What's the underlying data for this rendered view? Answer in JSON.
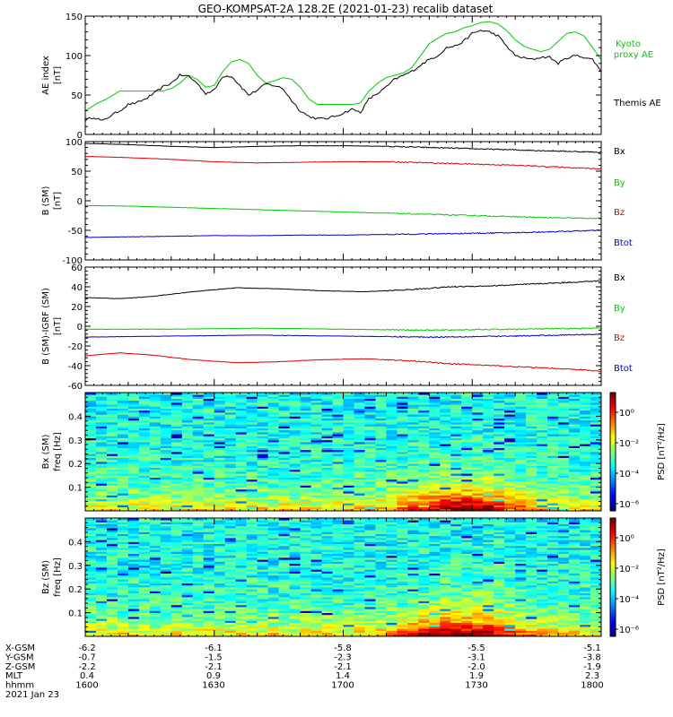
{
  "title": "GEO-KOMPSAT-2A 128.2E (2021-01-23) recalib dataset",
  "colors": {
    "black": "#000000",
    "red": "#e00000",
    "green": "#00cc00",
    "blue": "#0000cc"
  },
  "chart_data": [
    {
      "type": "line",
      "name": "ae",
      "ylabel": "AE index",
      "yunit": "[nT]",
      "ylim": [
        0,
        150
      ],
      "yticks": [
        0,
        50,
        100,
        150
      ],
      "series": [
        {
          "name": "Kyoto proxy AE",
          "color": "#00cc00",
          "x": [
            0,
            3,
            5,
            8,
            12,
            15,
            18,
            20,
            22,
            24,
            26,
            28,
            30,
            32,
            34,
            36,
            38,
            40,
            42,
            44,
            46,
            48,
            50,
            52,
            54,
            56,
            58,
            60,
            62,
            64,
            66,
            68,
            70,
            72,
            74,
            76,
            78,
            80,
            82,
            84,
            86,
            88,
            90,
            92,
            94,
            96,
            98,
            100,
            102,
            104,
            106,
            108,
            110,
            112,
            114,
            116,
            118,
            120
          ],
          "y": [
            30,
            40,
            45,
            55,
            55,
            55,
            55,
            58,
            65,
            75,
            70,
            60,
            62,
            80,
            92,
            95,
            90,
            75,
            65,
            68,
            72,
            70,
            60,
            45,
            38,
            38,
            38,
            38,
            38,
            40,
            55,
            65,
            72,
            75,
            78,
            85,
            100,
            115,
            122,
            128,
            130,
            135,
            138,
            142,
            143,
            140,
            132,
            120,
            112,
            108,
            105,
            108,
            118,
            128,
            130,
            125,
            110,
            95
          ]
        },
        {
          "name": "Themis AE",
          "color": "#000000",
          "x": [
            0,
            2,
            4,
            6,
            8,
            10,
            12,
            14,
            16,
            18,
            20,
            22,
            24,
            26,
            28,
            30,
            32,
            34,
            36,
            38,
            40,
            42,
            44,
            46,
            48,
            50,
            52,
            54,
            56,
            58,
            60,
            62,
            64,
            66,
            68,
            70,
            72,
            74,
            76,
            78,
            80,
            82,
            84,
            86,
            88,
            90,
            92,
            94,
            96,
            98,
            100,
            102,
            104,
            106,
            108,
            110,
            112,
            114,
            116,
            118,
            120
          ],
          "y": [
            18,
            22,
            17,
            24,
            30,
            38,
            40,
            45,
            52,
            60,
            65,
            75,
            74,
            65,
            52,
            56,
            74,
            74,
            62,
            50,
            56,
            64,
            62,
            58,
            43,
            30,
            23,
            20,
            20,
            23,
            27,
            32,
            28,
            45,
            52,
            60,
            70,
            75,
            80,
            88,
            95,
            100,
            110,
            112,
            118,
            128,
            132,
            130,
            125,
            112,
            100,
            97,
            95,
            98,
            98,
            90,
            97,
            100,
            98,
            95,
            80
          ]
        }
      ]
    },
    {
      "type": "line",
      "name": "bsm",
      "ylabel": "B (SM)",
      "yunit": "[nT]",
      "ylim": [
        -100,
        100
      ],
      "yticks": [
        -100,
        -50,
        0,
        50,
        100
      ],
      "series": [
        {
          "name": "Bx",
          "color": "#000000",
          "x": [
            0,
            10,
            20,
            30,
            40,
            50,
            60,
            70,
            80,
            90,
            100,
            110,
            120
          ],
          "y": [
            97,
            95,
            92,
            90,
            92,
            93,
            93,
            92,
            90,
            88,
            86,
            84,
            82
          ]
        },
        {
          "name": "By",
          "color": "#00cc00",
          "x": [
            0,
            10,
            20,
            30,
            40,
            50,
            60,
            70,
            80,
            90,
            100,
            110,
            120
          ],
          "y": [
            -8,
            -9,
            -11,
            -13,
            -15,
            -17,
            -19,
            -21,
            -23,
            -25,
            -27,
            -29,
            -30
          ]
        },
        {
          "name": "Bz",
          "color": "#e00000",
          "x": [
            0,
            10,
            20,
            30,
            40,
            50,
            60,
            70,
            80,
            90,
            100,
            110,
            120
          ],
          "y": [
            75,
            73,
            70,
            66,
            64,
            65,
            66,
            66,
            64,
            62,
            60,
            57,
            54
          ]
        },
        {
          "name": "Btot",
          "color": "#0000cc",
          "x": [
            0,
            10,
            20,
            30,
            40,
            50,
            60,
            70,
            80,
            90,
            100,
            110,
            120
          ],
          "y": [
            -62,
            -61,
            -60,
            -59,
            -59,
            -58,
            -58,
            -57,
            -56,
            -55,
            -54,
            -52,
            -50
          ]
        }
      ]
    },
    {
      "type": "line",
      "name": "bigrf",
      "ylabel": "B (SM)-IGRF (SM)",
      "yunit": "[nT]",
      "ylim": [
        -60,
        60
      ],
      "yticks": [
        -60,
        -40,
        -20,
        0,
        20,
        40,
        60
      ],
      "series": [
        {
          "name": "Bx",
          "color": "#000000",
          "x": [
            0,
            8,
            15,
            25,
            35,
            45,
            55,
            65,
            75,
            85,
            95,
            105,
            115,
            120
          ],
          "y": [
            29,
            28,
            30,
            35,
            39,
            38,
            36,
            35,
            37,
            40,
            41,
            43,
            45,
            46
          ]
        },
        {
          "name": "By",
          "color": "#00cc00",
          "x": [
            0,
            20,
            40,
            60,
            80,
            100,
            120
          ],
          "y": [
            -3,
            -3,
            -2,
            -3,
            -4,
            -3,
            -2
          ]
        },
        {
          "name": "Bz",
          "color": "#e00000",
          "x": [
            0,
            8,
            15,
            25,
            35,
            45,
            55,
            65,
            75,
            85,
            95,
            105,
            115,
            120
          ],
          "y": [
            -30,
            -27,
            -29,
            -34,
            -37,
            -36,
            -34,
            -33,
            -35,
            -38,
            -40,
            -42,
            -44,
            -46
          ]
        },
        {
          "name": "Btot",
          "color": "#0000cc",
          "x": [
            0,
            20,
            40,
            60,
            80,
            100,
            120
          ],
          "y": [
            -11,
            -10,
            -9,
            -10,
            -11,
            -10,
            -8
          ]
        }
      ]
    },
    {
      "type": "heatmap",
      "name": "bx-spec",
      "ylabel": "Bx (SM)",
      "yunit": "freq [Hz]",
      "ylim": [
        0,
        0.5
      ],
      "yticks": [
        0.1,
        0.2,
        0.3,
        0.4
      ],
      "colorbar_label": "PSD [nT²/Hz]",
      "colorbar_ticks": [
        "10⁰",
        "10⁻²",
        "10⁻⁴",
        "10⁻⁶"
      ]
    },
    {
      "type": "heatmap",
      "name": "bz-spec",
      "ylabel": "Bz (SM)",
      "yunit": "freq [Hz]",
      "ylim": [
        0,
        0.5
      ],
      "yticks": [
        0.1,
        0.2,
        0.3,
        0.4
      ],
      "colorbar_label": "PSD [nT²/Hz]",
      "colorbar_ticks": [
        "10⁰",
        "10⁻²",
        "10⁻⁴",
        "10⁻⁶"
      ]
    }
  ],
  "ephemeris": {
    "rows": [
      {
        "label": "X-GSM",
        "values": [
          "-6.2",
          "-6.1",
          "-5.8",
          "-5.5",
          "-5.1"
        ]
      },
      {
        "label": "Y-GSM",
        "values": [
          "-0.7",
          "-1.5",
          "-2.3",
          "-3.1",
          "-3.8"
        ]
      },
      {
        "label": "Z-GSM",
        "values": [
          "-2.2",
          "-2.1",
          "-2.1",
          "-2.0",
          "-1.9"
        ]
      },
      {
        "label": "MLT",
        "values": [
          "0.4",
          "0.9",
          "1.4",
          "1.9",
          "2.3"
        ]
      },
      {
        "label": "hhmm",
        "values": [
          "1600",
          "1630",
          "1700",
          "1730",
          "1800"
        ]
      }
    ],
    "date": "2021 Jan 23"
  }
}
